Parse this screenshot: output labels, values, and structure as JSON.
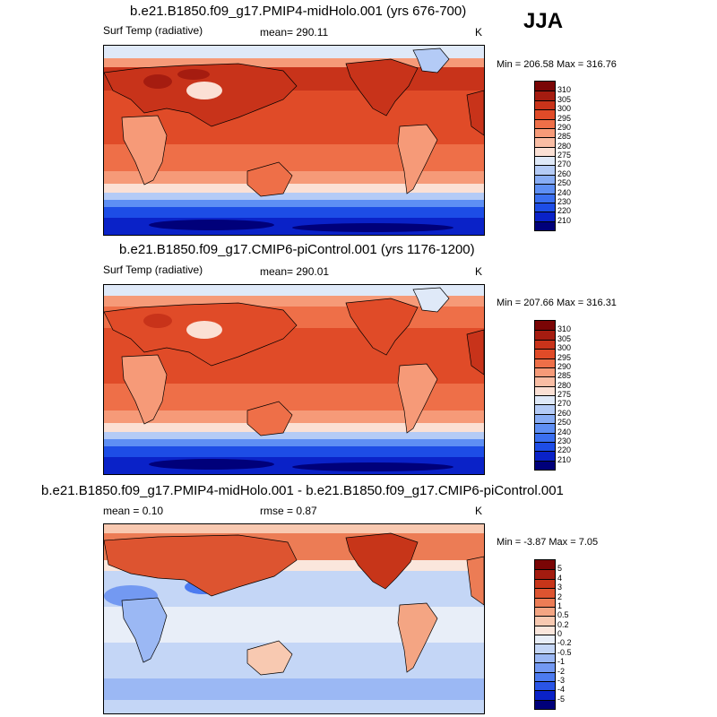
{
  "season": "JJA",
  "colors": {
    "abs": [
      "#00007a",
      "#0a22c8",
      "#1d4de6",
      "#3a6ff0",
      "#5e8ff4",
      "#88adf5",
      "#b4cbf6",
      "#dfe9f8",
      "#fbe0d4",
      "#f9bda4",
      "#f69a78",
      "#ee6f48",
      "#e04b28",
      "#c8331a",
      "#a51c10",
      "#7a0505"
    ],
    "diff": [
      "#00007a",
      "#0a22c8",
      "#2a55e6",
      "#4c7bf0",
      "#7399f2",
      "#9bb8f4",
      "#c4d6f6",
      "#e8eef8",
      "#fae6dc",
      "#f8c9b1",
      "#f4a583",
      "#ec7c55",
      "#dd5430",
      "#c73519",
      "#a31b0f",
      "#7a0505"
    ]
  },
  "panels": [
    {
      "title": "b.e21.B1850.f09_g17.PMIP4-midHolo.001 (yrs 676-700)",
      "left_label": "Surf Temp (radiative)",
      "center_label": "mean= 290.11",
      "units": "K",
      "minmax": "Min = 206.58 Max = 316.76"
    },
    {
      "title": "b.e21.B1850.f09_g17.CMIP6-piControl.001 (yrs 1176-1200)",
      "left_label": "Surf Temp (radiative)",
      "center_label": "mean= 290.01",
      "units": "K",
      "minmax": "Min = 207.66 Max = 316.31"
    },
    {
      "title": "b.e21.B1850.f09_g17.PMIP4-midHolo.001 - b.e21.B1850.f09_g17.CMIP6-piControl.001",
      "left_label": "mean =  0.10",
      "center_label": "rmse =  0.87",
      "units": "K",
      "minmax": "Min =  -3.87 Max =  7.05"
    }
  ],
  "chart_data": [
    {
      "type": "heatmap",
      "title": "b.e21.B1850.f09_g17.PMIP4-midHolo.001 (yrs 676-700)",
      "variable": "Surf Temp (radiative)",
      "units": "K",
      "mean": 290.11,
      "min": 206.58,
      "max": 316.76,
      "season": "JJA",
      "colorbar_levels": [
        "310",
        "305",
        "300",
        "295",
        "290",
        "285",
        "280",
        "275",
        "270",
        "260",
        "250",
        "240",
        "230",
        "220",
        "210"
      ]
    },
    {
      "type": "heatmap",
      "title": "b.e21.B1850.f09_g17.CMIP6-piControl.001 (yrs 1176-1200)",
      "variable": "Surf Temp (radiative)",
      "units": "K",
      "mean": 290.01,
      "min": 207.66,
      "max": 316.31,
      "season": "JJA",
      "colorbar_levels": [
        "310",
        "305",
        "300",
        "295",
        "290",
        "285",
        "280",
        "275",
        "270",
        "260",
        "250",
        "240",
        "230",
        "220",
        "210"
      ]
    },
    {
      "type": "heatmap",
      "title": "b.e21.B1850.f09_g17.PMIP4-midHolo.001 - b.e21.B1850.f09_g17.CMIP6-piControl.001",
      "variable": "difference",
      "units": "K",
      "mean": 0.1,
      "rmse": 0.87,
      "min": -3.87,
      "max": 7.05,
      "season": "JJA",
      "colorbar_levels": [
        "5",
        "4",
        "3",
        "2",
        "1",
        "0.5",
        "0.2",
        "0",
        "-0.2",
        "-0.5",
        "-1",
        "-2",
        "-3",
        "-4",
        "-5"
      ]
    }
  ]
}
